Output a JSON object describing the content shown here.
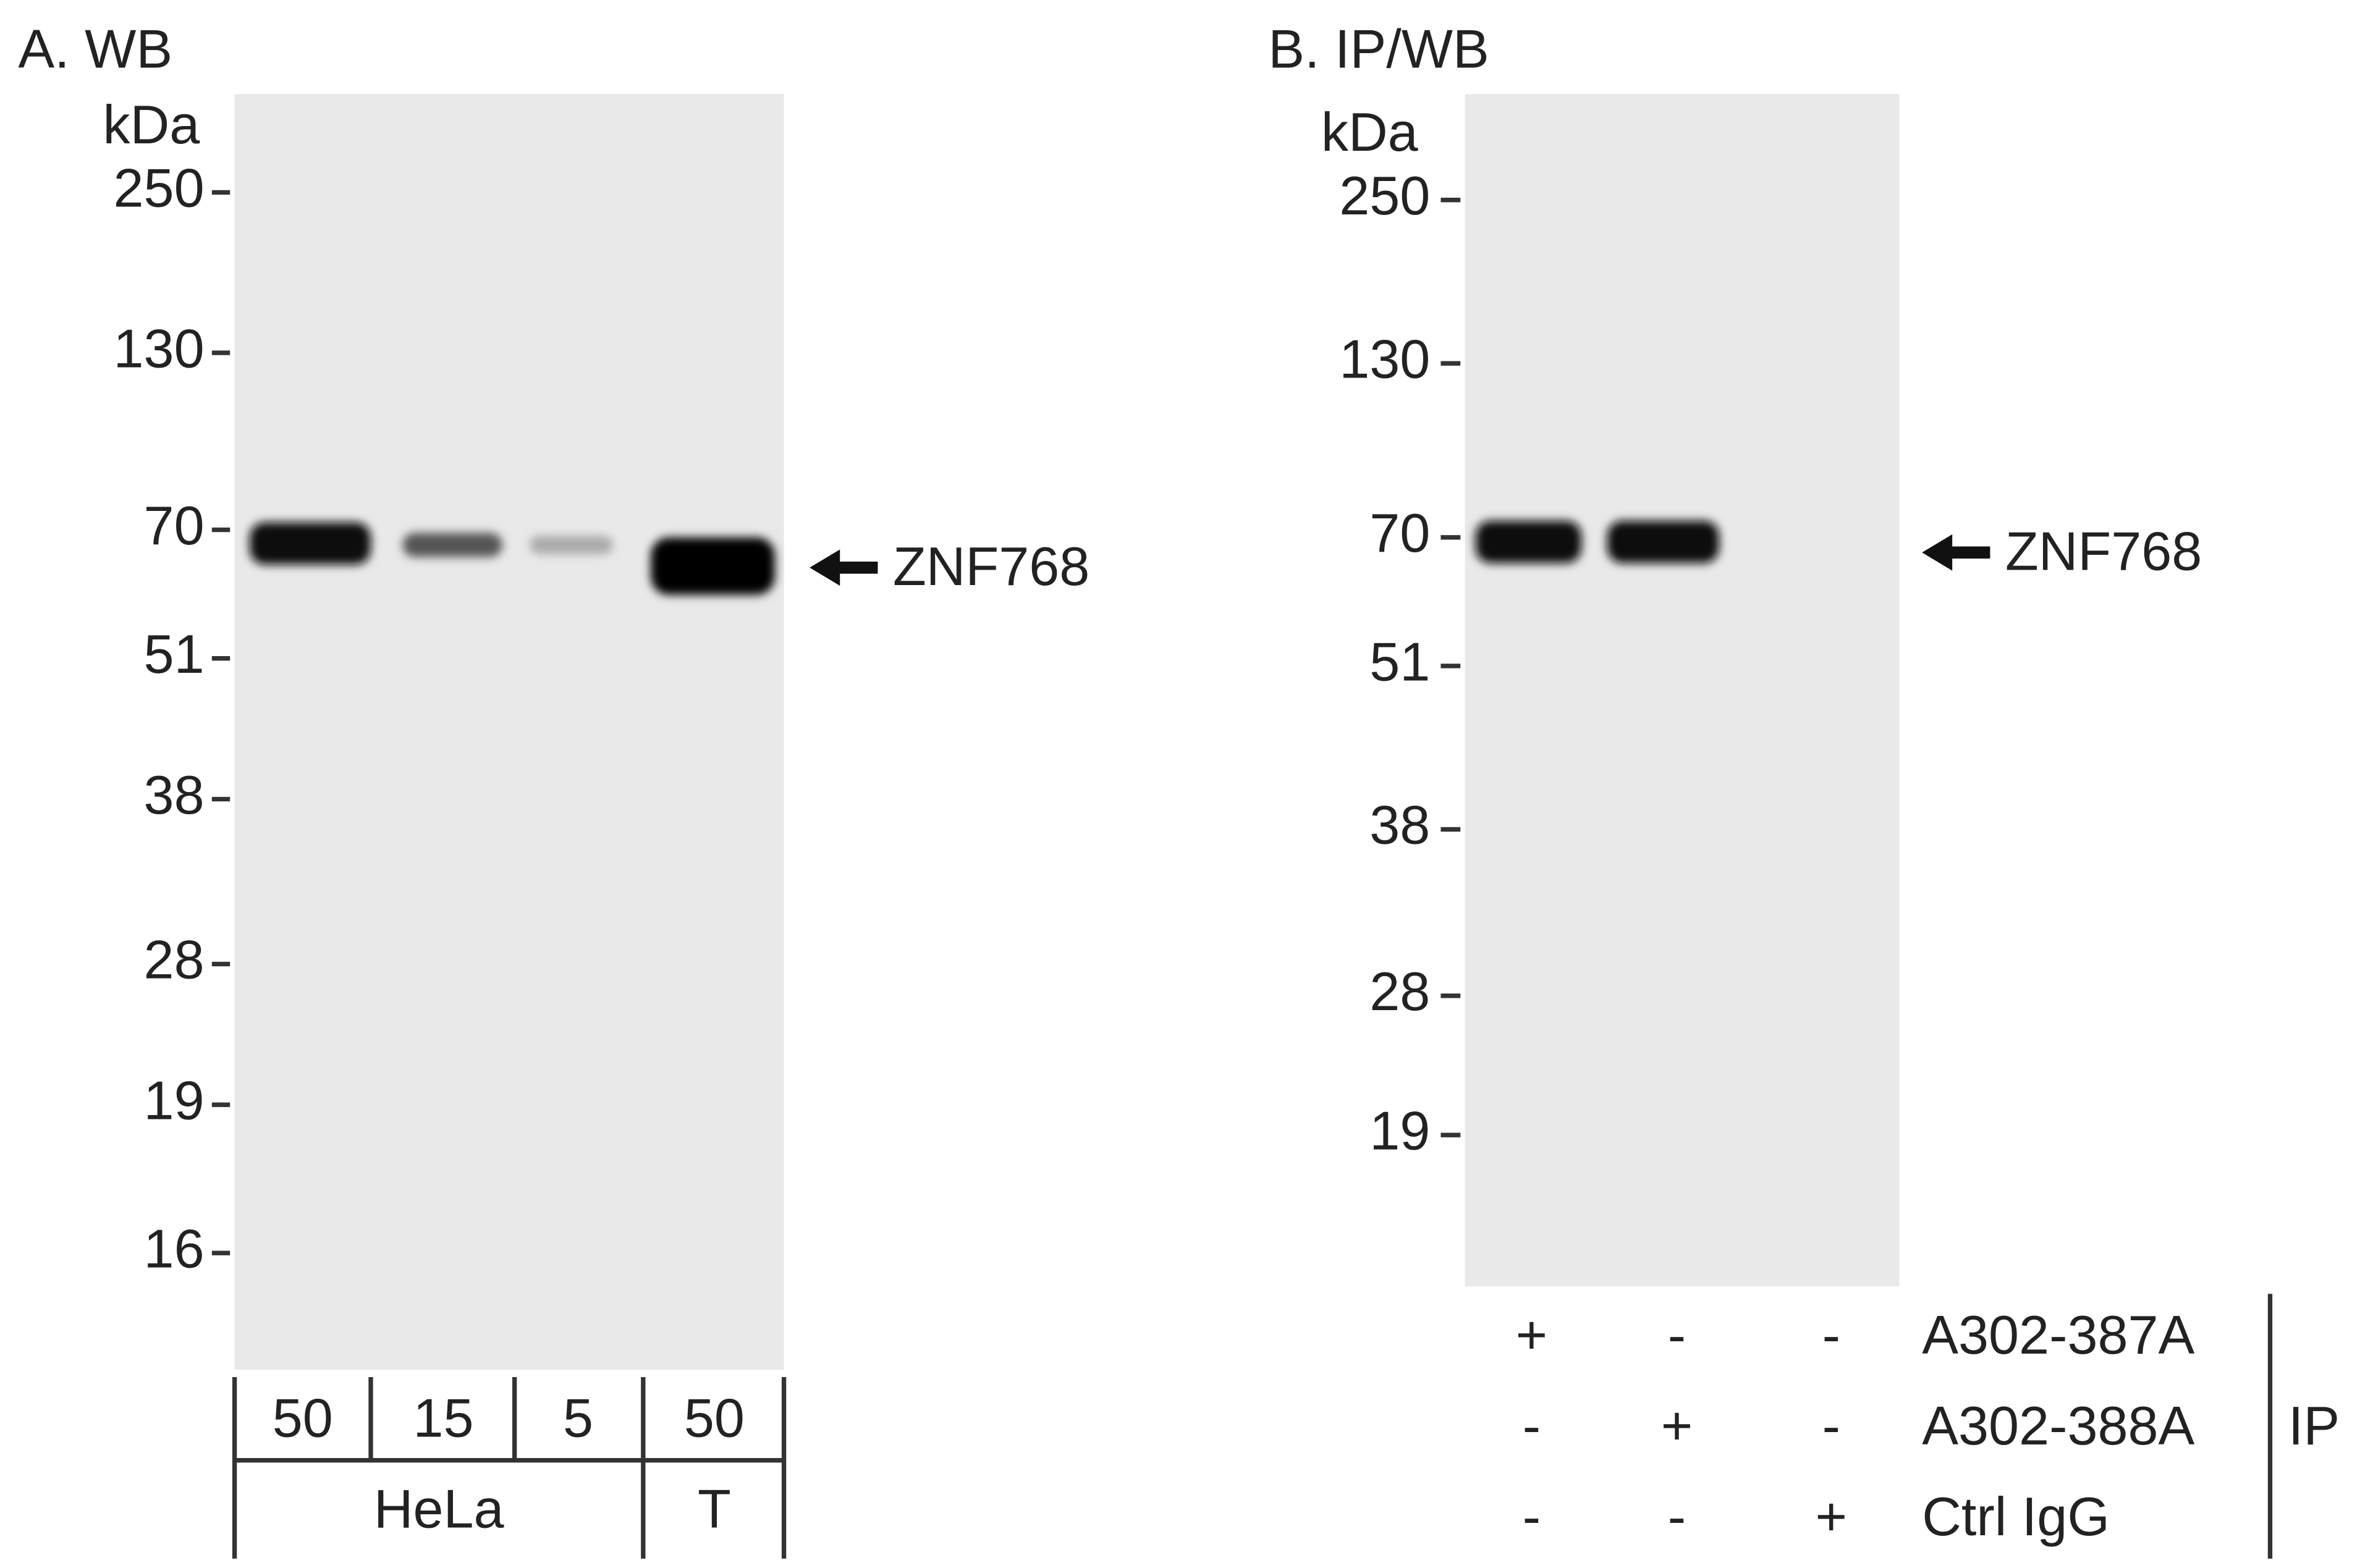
{
  "panel_a": {
    "title": "A. WB",
    "unit": "kDa",
    "markers": [
      "250",
      "130",
      "70",
      "51",
      "38",
      "28",
      "19",
      "16"
    ],
    "lanes": [
      "50",
      "15",
      "5",
      "50"
    ],
    "groups": [
      "HeLa",
      "T"
    ],
    "target": "ZNF768"
  },
  "panel_b": {
    "title": "B. IP/WB",
    "unit": "kDa",
    "markers": [
      "250",
      "130",
      "70",
      "51",
      "38",
      "28",
      "19"
    ],
    "target": "ZNF768",
    "rows": [
      {
        "label": "A302-387A",
        "signs": [
          "+",
          "-",
          "-"
        ]
      },
      {
        "label": "A302-388A",
        "signs": [
          "-",
          "+",
          "-"
        ]
      },
      {
        "label": "Ctrl IgG",
        "signs": [
          "-",
          "-",
          "+"
        ]
      }
    ],
    "ip_label": "IP"
  }
}
